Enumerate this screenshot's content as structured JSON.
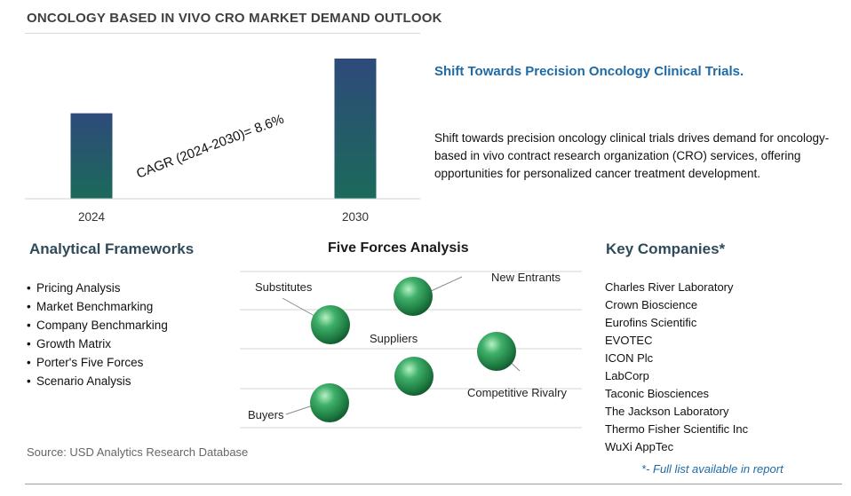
{
  "title": "ONCOLOGY BASED IN VIVO CRO MARKET DEMAND OUTLOOK",
  "chart_data": {
    "type": "bar",
    "categories": [
      "2024",
      "2030"
    ],
    "values": [
      1.0,
      1.64
    ],
    "annotation": "CAGR (2024-2030)=  8.6%",
    "bar_colors": [
      "#1b6a5a",
      "#2e4a7a"
    ]
  },
  "headline": "Shift Towards Precision Oncology Clinical Trials.",
  "description": "Shift towards precision oncology clinical trials drives demand for oncology-based in vivo contract research organization (CRO) services, offering opportunities for personalized cancer treatment development.",
  "frameworks": {
    "title": "Analytical Frameworks",
    "items": [
      "Pricing Analysis",
      "Market Benchmarking",
      "Company Benchmarking",
      "Growth Matrix",
      "Porter's Five Forces",
      "Scenario Analysis"
    ]
  },
  "five_forces": {
    "title": "Five Forces Analysis",
    "labels": {
      "substitutes": "Substitutes",
      "new_entrants": "New Entrants",
      "suppliers": "Suppliers",
      "competitive_rivalry": "Competitive Rivalry",
      "buyers": "Buyers"
    }
  },
  "companies": {
    "title": "Key Companies*",
    "items": [
      "Charles River Laboratory",
      "Crown Bioscience",
      "Eurofins Scientific",
      "EVOTEC",
      "ICON Plc",
      "LabCorp",
      "Taconic Biosciences",
      "The Jackson Laboratory",
      "Thermo Fisher Scientific Inc",
      "WuXi AppTec"
    ],
    "footnote": "*- Full list available in report"
  },
  "source": "Source: USD Analytics Research Database"
}
